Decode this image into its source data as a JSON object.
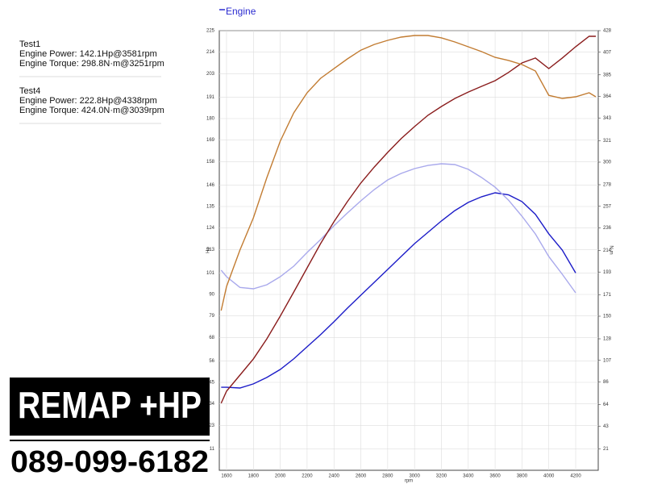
{
  "chart_data": {
    "type": "line",
    "legend": "Engine",
    "legend_color": "#2a2ad0",
    "x_label": "rpm",
    "y_label": "Hp",
    "y2_label": "N·m",
    "grid": true,
    "x": [
      1560,
      1600,
      1700,
      1800,
      1900,
      2000,
      2100,
      2200,
      2300,
      2400,
      2500,
      2600,
      2700,
      2800,
      2900,
      3000,
      3100,
      3200,
      3300,
      3400,
      3500,
      3600,
      3700,
      3800,
      3900,
      4000,
      4100,
      4200,
      4300,
      4350
    ],
    "xlim": [
      1546,
      4368
    ],
    "xticks": [
      1600,
      1800,
      2000,
      2200,
      2400,
      2600,
      2800,
      3000,
      3200,
      3400,
      3600,
      3800,
      4000,
      4200
    ],
    "ylim": [
      0,
      225
    ],
    "yticks": [
      11,
      23,
      34,
      45,
      56,
      68,
      79,
      90,
      101,
      113,
      124,
      135,
      146,
      158,
      169,
      180,
      191,
      203,
      214,
      225
    ],
    "y2lim": [
      0,
      428
    ],
    "y2ticks": [
      21,
      43,
      64,
      86,
      107,
      128,
      150,
      171,
      193,
      214,
      236,
      257,
      278,
      300,
      321,
      343,
      364,
      385,
      407,
      428
    ],
    "series": [
      {
        "color": "#1c1cc8",
        "axis": "y",
        "values": [
          42.5,
          42.5,
          42.1,
          44.2,
          47.5,
          51.6,
          57,
          63.2,
          69.4,
          76,
          83,
          89.6,
          96.2,
          102.8,
          109.4,
          116,
          121.8,
          127.6,
          132.9,
          137.1,
          140,
          142,
          141,
          137.5,
          131,
          121,
          112.7,
          101,
          null,
          null
        ]
      },
      {
        "color": "#a9a9ec",
        "axis": "y2",
        "values": [
          194.8,
          188.5,
          178,
          176.7,
          180.6,
          188.5,
          198.7,
          212,
          224.6,
          238,
          250.5,
          262.3,
          273.3,
          282.7,
          289,
          293.7,
          296.8,
          298.4,
          297.6,
          293,
          285,
          275.6,
          263,
          247.4,
          230,
          208,
          190.8,
          172.8,
          null,
          null
        ]
      },
      {
        "color": "#8a1c1c",
        "axis": "y",
        "values": [
          34.3,
          40.5,
          48.7,
          57,
          67.3,
          78.9,
          91.2,
          103.6,
          116,
          127.2,
          137.5,
          147,
          155.2,
          162.7,
          169.7,
          175.9,
          181.7,
          186.2,
          190.3,
          193.6,
          196.5,
          199.4,
          203.6,
          208.5,
          211,
          205.6,
          211,
          216.8,
          222.1,
          222.1
        ]
      },
      {
        "color": "#c27c32",
        "axis": "y2",
        "values": [
          155.5,
          179,
          214.4,
          245.8,
          285,
          320.4,
          347.9,
          367.5,
          381.6,
          391,
          400.5,
          409,
          414.6,
          418.6,
          421.7,
          423.3,
          423.3,
          421,
          417,
          412.3,
          407.6,
          402,
          399,
          395,
          388.7,
          365,
          362,
          363.6,
          367.5,
          363.6
        ]
      }
    ]
  },
  "summary": [
    {
      "name": "Test1",
      "color": "#2222bb",
      "lines": [
        "Engine Power: 142.1Hp@3581rpm",
        "Engine Torque: 298.8N·m@3251rpm"
      ]
    },
    {
      "name": "Test4",
      "color": "#8a1c1c",
      "lines": [
        "Engine Power: 222.8Hp@4338rpm",
        "Engine Torque: 424.0N·m@3039rpm"
      ]
    }
  ],
  "banner": {
    "title": "REMAP +HP",
    "phone": "089-099-6182"
  }
}
